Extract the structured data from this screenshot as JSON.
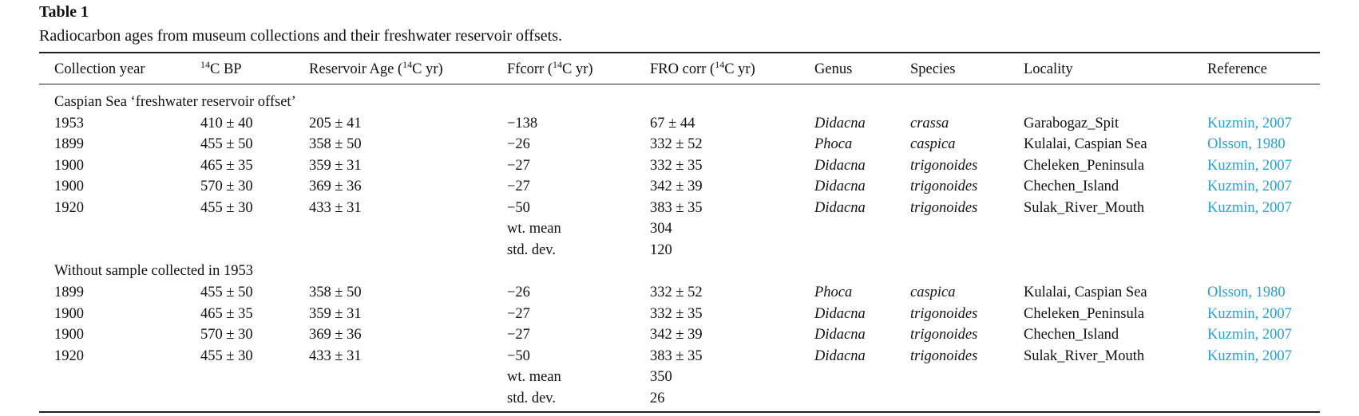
{
  "title": "Table 1",
  "caption": "Radiocarbon ages from museum collections and their freshwater reservoir offsets.",
  "headers": [
    [
      {
        "text": "Collection year"
      }
    ],
    [
      {
        "text": "14",
        "sup": true
      },
      {
        "text": "C BP"
      }
    ],
    [
      {
        "text": "Reservoir Age ("
      },
      {
        "text": "14",
        "sup": true
      },
      {
        "text": "C yr)"
      }
    ],
    [
      {
        "text": "Ffcorr ("
      },
      {
        "text": "14",
        "sup": true
      },
      {
        "text": "C yr)"
      }
    ],
    [
      {
        "text": "FRO corr ("
      },
      {
        "text": "14",
        "sup": true
      },
      {
        "text": "C yr)"
      }
    ],
    [
      {
        "text": "Genus"
      }
    ],
    [
      {
        "text": "Species"
      }
    ],
    [
      {
        "text": "Locality"
      }
    ],
    [
      {
        "text": "Reference"
      }
    ]
  ],
  "sections": [
    {
      "title": "Caspian Sea ‘freshwater reservoir offset’",
      "rows": [
        [
          "1953",
          "410 ± 40",
          "205 ± 41",
          "−138",
          "67 ± 44",
          "Didacna",
          "crassa",
          "Garabogaz_Spit",
          "Kuzmin, 2007"
        ],
        [
          "1899",
          "455 ± 50",
          "358 ± 50",
          "−26",
          "332 ± 52",
          "Phoca",
          "caspica",
          "Kulalai, Caspian Sea",
          "Olsson, 1980"
        ],
        [
          "1900",
          "465 ± 35",
          "359 ± 31",
          "−27",
          "332 ± 35",
          "Didacna",
          "trigonoides",
          "Cheleken_Peninsula",
          "Kuzmin, 2007"
        ],
        [
          "1900",
          "570 ± 30",
          "369 ± 36",
          "−27",
          "342 ± 39",
          "Didacna",
          "trigonoides",
          "Chechen_Island",
          "Kuzmin, 2007"
        ],
        [
          "1920",
          "455 ± 30",
          "433 ± 31",
          "−50",
          "383 ± 35",
          "Didacna",
          "trigonoides",
          "Sulak_River_Mouth",
          "Kuzmin, 2007"
        ]
      ],
      "summary": [
        {
          "label": "wt. mean",
          "value": "304"
        },
        {
          "label": "std. dev.",
          "value": "120"
        }
      ]
    },
    {
      "title": "Without sample collected in 1953",
      "rows": [
        [
          "1899",
          "455 ± 50",
          "358 ± 50",
          "−26",
          "332 ± 52",
          "Phoca",
          "caspica",
          "Kulalai, Caspian Sea",
          "Olsson, 1980"
        ],
        [
          "1900",
          "465 ± 35",
          "359 ± 31",
          "−27",
          "332 ± 35",
          "Didacna",
          "trigonoides",
          "Cheleken_Peninsula",
          "Kuzmin, 2007"
        ],
        [
          "1900",
          "570 ± 30",
          "369 ± 36",
          "−27",
          "342 ± 39",
          "Didacna",
          "trigonoides",
          "Chechen_Island",
          "Kuzmin, 2007"
        ],
        [
          "1920",
          "455 ± 30",
          "433 ± 31",
          "−50",
          "383 ± 35",
          "Didacna",
          "trigonoides",
          "Sulak_River_Mouth",
          "Kuzmin, 2007"
        ]
      ],
      "summary": [
        {
          "label": "wt. mean",
          "value": "350"
        },
        {
          "label": "std. dev.",
          "value": "26"
        }
      ]
    }
  ]
}
